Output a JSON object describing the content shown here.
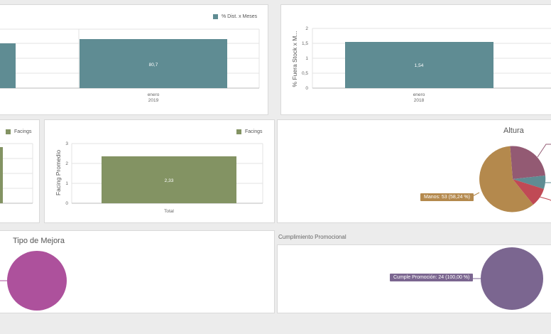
{
  "panels": {
    "dist_meses": {
      "legend": "% Dist. x Meses",
      "color": "#5f8c93",
      "chart_data": {
        "type": "bar",
        "categories": [
          "",
          "enero 2019"
        ],
        "values": [
          null,
          80.7
        ],
        "data_labels": [
          "",
          "80,7"
        ],
        "x_ticks": [
          [
            "enero",
            "2019"
          ]
        ]
      }
    },
    "fuera_stock": {
      "color": "#5f8c93",
      "chart_data": {
        "type": "bar",
        "categories": [
          "enero 2018"
        ],
        "values": [
          1.54
        ],
        "data_labels": [
          "1,54"
        ],
        "ylabel": "% Fuera Stock x M...",
        "yticks": [
          "2",
          "1,5",
          "1",
          "0,5",
          "0"
        ],
        "ylim": [
          0,
          2
        ],
        "x_ticks": [
          [
            "enero",
            "2018"
          ]
        ]
      }
    },
    "facings_left": {
      "legend": "Facings",
      "color": "#839363"
    },
    "facings": {
      "legend": "Facings",
      "color": "#839363",
      "chart_data": {
        "type": "bar",
        "categories": [
          "Total"
        ],
        "values": [
          2.33
        ],
        "data_labels": [
          "2,33"
        ],
        "ylabel": "Facing Promedio",
        "yticks": [
          "3",
          "2",
          "1",
          "0"
        ],
        "ylim": [
          0,
          3
        ]
      }
    },
    "altura": {
      "title": "Altura",
      "chart_data": {
        "type": "pie",
        "slices": [
          {
            "label": "Manos: 53 (58,24 %)",
            "value": 58.24,
            "color": "#b4894d"
          },
          {
            "label": "",
            "value": 25.5,
            "color": "#935a73"
          },
          {
            "label": "",
            "value": 5.5,
            "color": "#5f8c93"
          },
          {
            "label": "",
            "value": 10.76,
            "color": "#c04a55"
          }
        ]
      }
    },
    "tipo_mejora": {
      "title": "Tipo de Mejora",
      "chart_data": {
        "type": "pie",
        "slices": [
          {
            "label": "",
            "value": 100,
            "color": "#ad519c"
          }
        ]
      }
    },
    "cumplimiento": {
      "title": "Cumplimiento Promocional",
      "chart_data": {
        "type": "pie",
        "slices": [
          {
            "label": "Cumple Promoción: 24 (100,00 %)",
            "value": 100,
            "color": "#7b6690"
          }
        ]
      }
    }
  }
}
